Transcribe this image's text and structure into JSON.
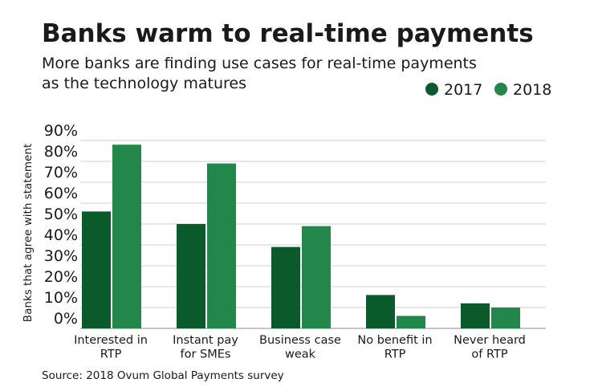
{
  "chart_data": {
    "type": "bar",
    "title": "Banks warm to real-time payments",
    "subtitle": [
      "More banks are finding use cases for real-time payments",
      "as the technology matures"
    ],
    "y_label": "Banks that agree with statement",
    "source": "Source: 2018 Ovum Global Payments survey",
    "categories": [
      "Interested in\nRTP",
      "Instant pay\nfor SMEs",
      "Business case\nweak",
      "No benefit in\nRTP",
      "Never heard\nof RTP"
    ],
    "series": [
      {
        "name": "2017",
        "color": "#0b5a2b",
        "values": [
          56,
          50,
          39,
          16,
          12
        ]
      },
      {
        "name": "2018",
        "color": "#23874b",
        "values": [
          88,
          79,
          49,
          6,
          10
        ]
      }
    ],
    "ylim": [
      0,
      90
    ],
    "yticks": [
      {
        "value": 0,
        "label": "0%"
      },
      {
        "value": 10,
        "label": "10%"
      },
      {
        "value": 20,
        "label": "20%"
      },
      {
        "value": 30,
        "label": "30%"
      },
      {
        "value": 40,
        "label": "40%"
      },
      {
        "value": 50,
        "label": "50%"
      },
      {
        "value": 60,
        "label": "60%"
      },
      {
        "value": 70,
        "label": "70%"
      },
      {
        "value": 80,
        "label": "80%"
      },
      {
        "value": 90,
        "label": "90%"
      }
    ],
    "grid": true
  }
}
